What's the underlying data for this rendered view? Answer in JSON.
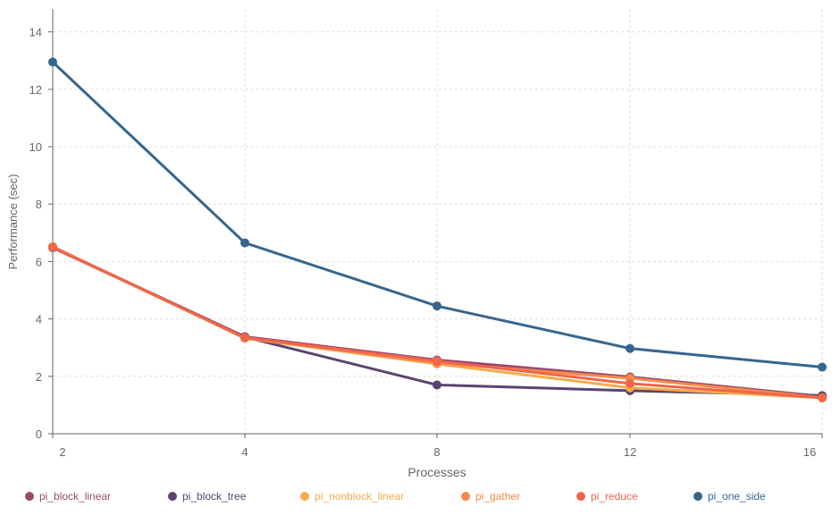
{
  "chart_data": {
    "type": "line",
    "xlabel": "Processes",
    "ylabel": "Performance (sec)",
    "categories": [
      "2",
      "4",
      "8",
      "12",
      "16"
    ],
    "ylim": [
      0,
      14.8
    ],
    "yticks": [
      0,
      2,
      4,
      6,
      8,
      10,
      12,
      14
    ],
    "grid": true,
    "legend_position": "bottom",
    "series": [
      {
        "name": "pi_block_linear",
        "color": "#9b4a6c",
        "values": [
          6.5,
          3.38,
          2.57,
          1.98,
          1.3
        ]
      },
      {
        "name": "pi_block_tree",
        "color": "#5a4470",
        "values": [
          6.48,
          3.37,
          1.7,
          1.5,
          1.33
        ]
      },
      {
        "name": "pi_nonblock_linear",
        "color": "#f5ab4a",
        "values": [
          6.5,
          3.33,
          2.43,
          1.6,
          1.25
        ]
      },
      {
        "name": "pi_gather",
        "color": "#f5894a",
        "values": [
          6.52,
          3.33,
          2.47,
          1.93,
          1.26
        ]
      },
      {
        "name": "pi_reduce",
        "color": "#f1654b",
        "values": [
          6.5,
          3.35,
          2.53,
          1.75,
          1.25
        ]
      },
      {
        "name": "pi_one_side",
        "color": "#36668d",
        "values": [
          12.95,
          6.65,
          4.45,
          2.97,
          2.32
        ]
      }
    ]
  }
}
